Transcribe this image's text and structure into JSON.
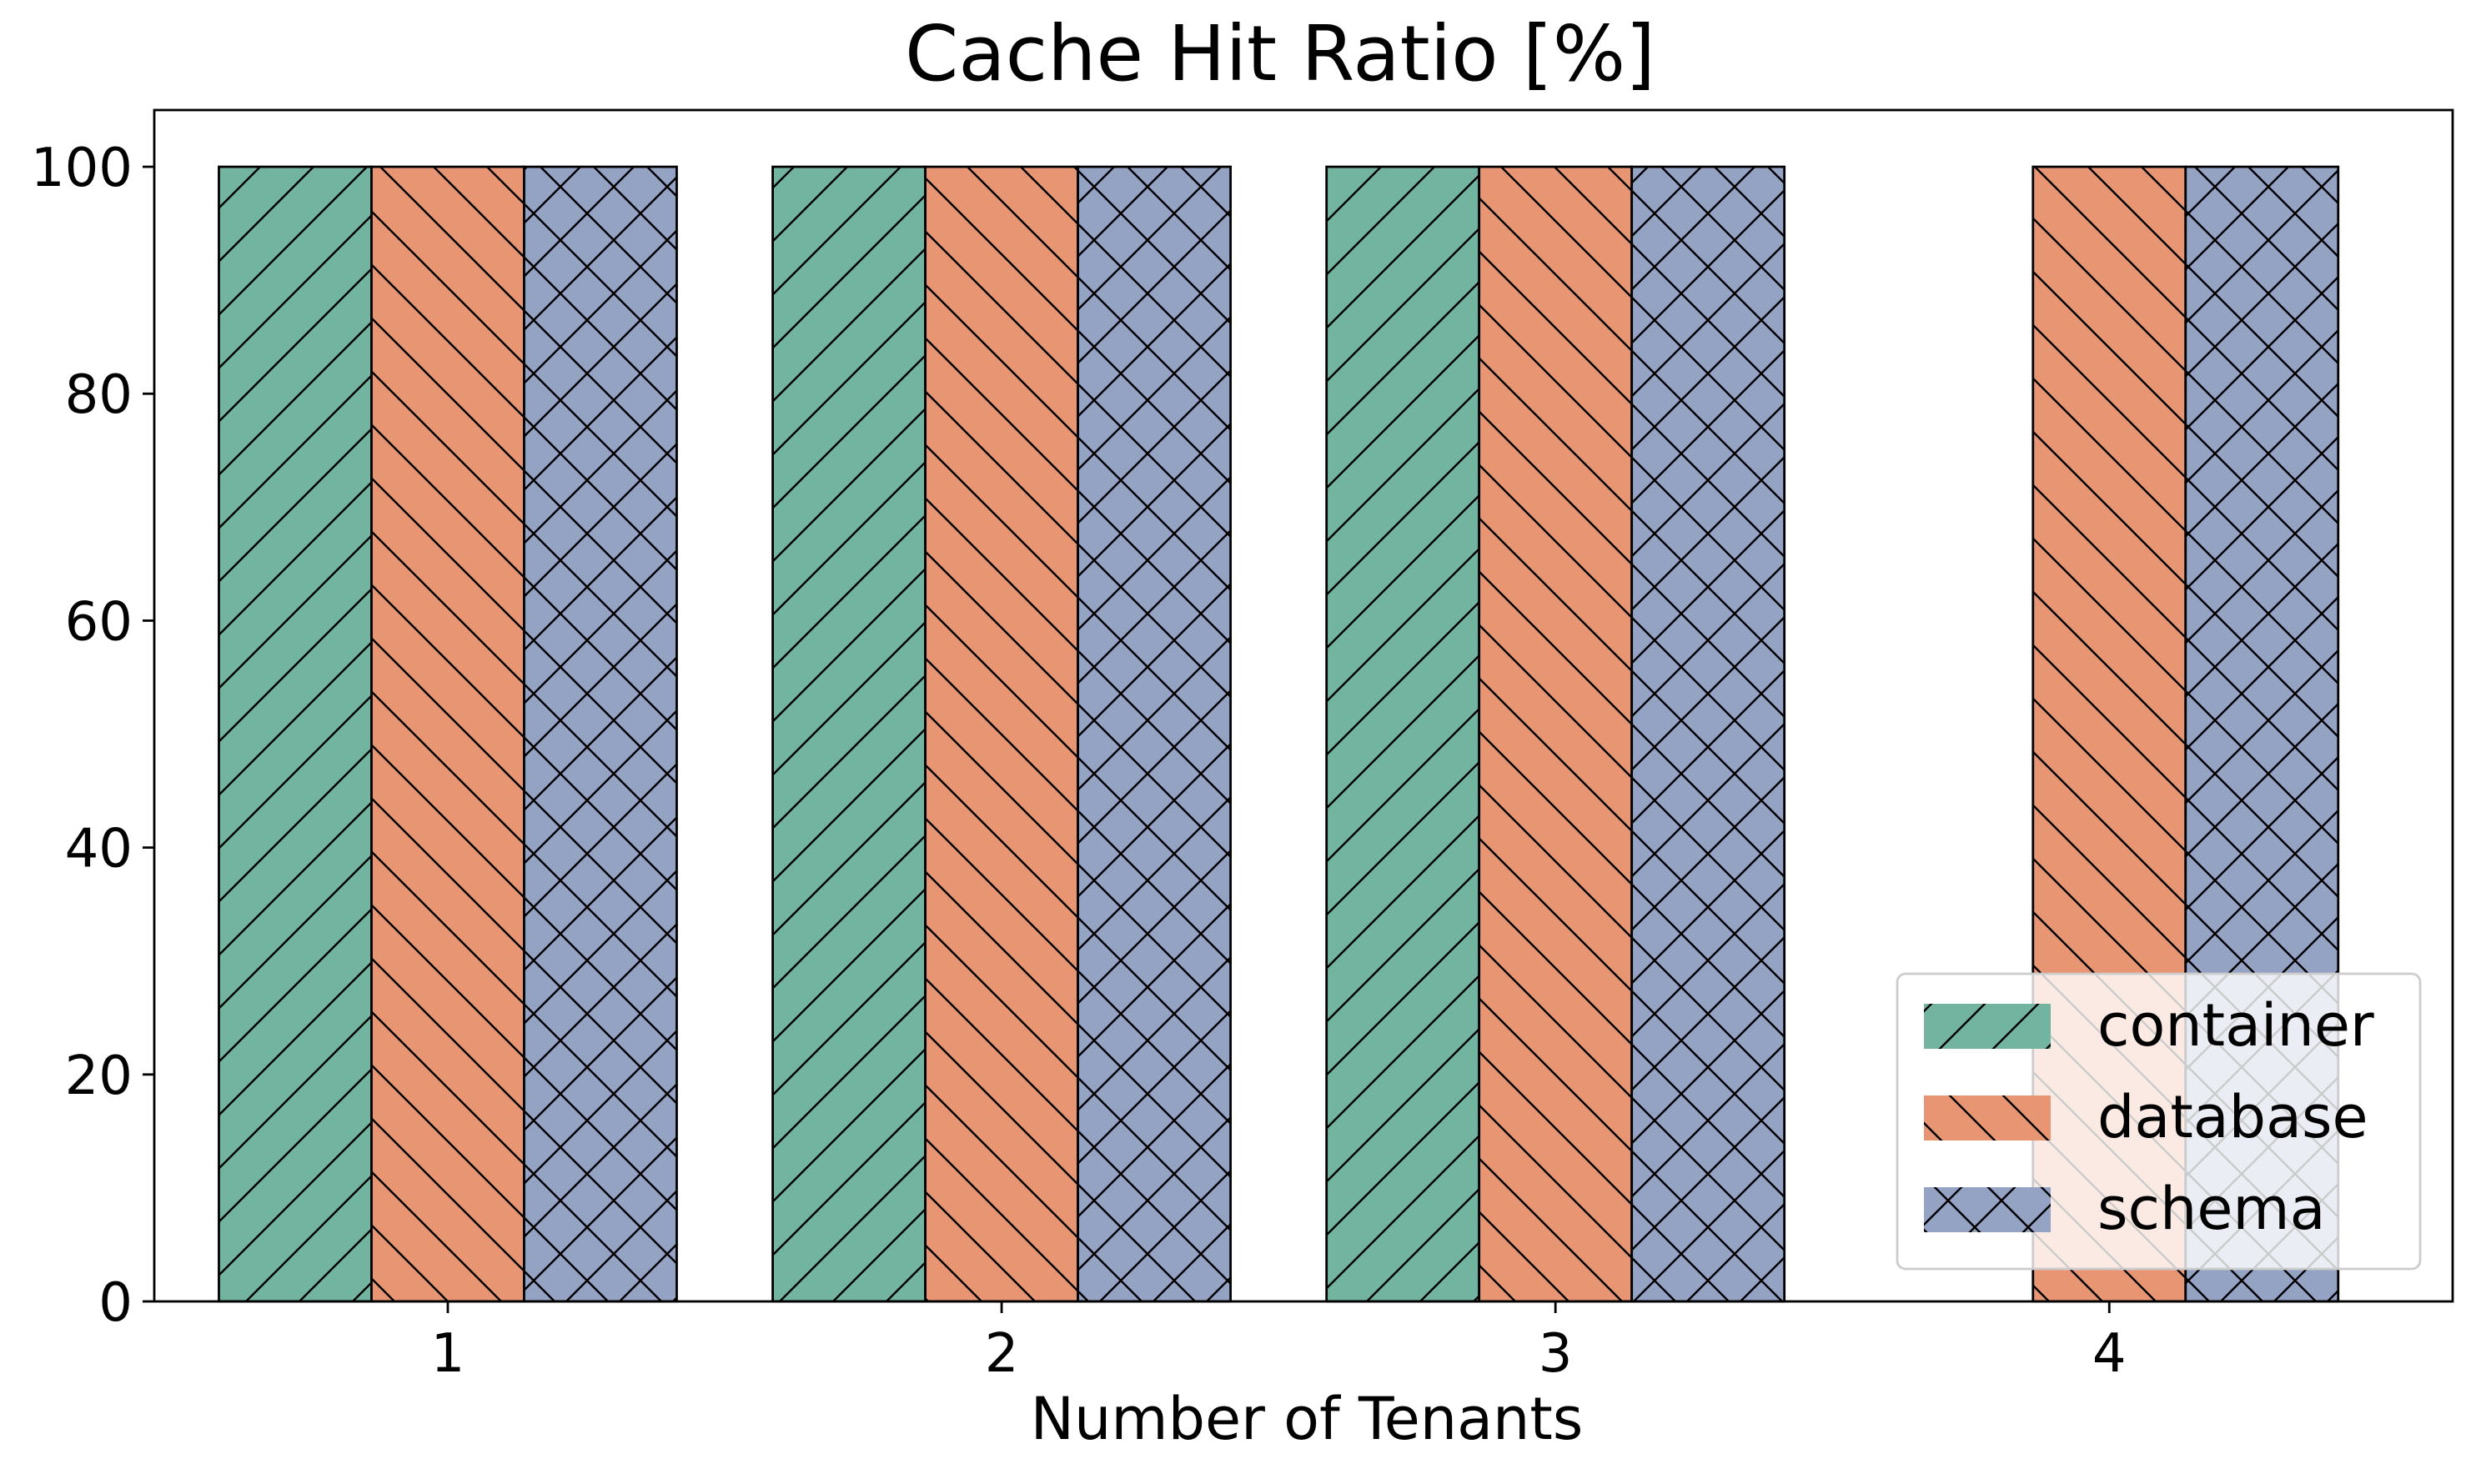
{
  "chart_data": {
    "type": "bar",
    "title": "Cache Hit Ratio [%]",
    "xlabel": "Number of Tenants",
    "ylabel": "",
    "categories": [
      "1",
      "2",
      "3",
      "4"
    ],
    "ylim": [
      0,
      105
    ],
    "yticks": [
      0,
      20,
      40,
      60,
      80,
      100
    ],
    "grid": false,
    "legend_position": "bottom-right",
    "series": [
      {
        "name": "container",
        "values": [
          100,
          100,
          100,
          null
        ],
        "color": "#72b4a0",
        "hatch": "forward-diagonal"
      },
      {
        "name": "database",
        "values": [
          100,
          100,
          100,
          100
        ],
        "color": "#e89574",
        "hatch": "back-diagonal"
      },
      {
        "name": "schema",
        "values": [
          100,
          100,
          100,
          100
        ],
        "color": "#94a3c3",
        "hatch": "cross-diagonal"
      }
    ]
  }
}
